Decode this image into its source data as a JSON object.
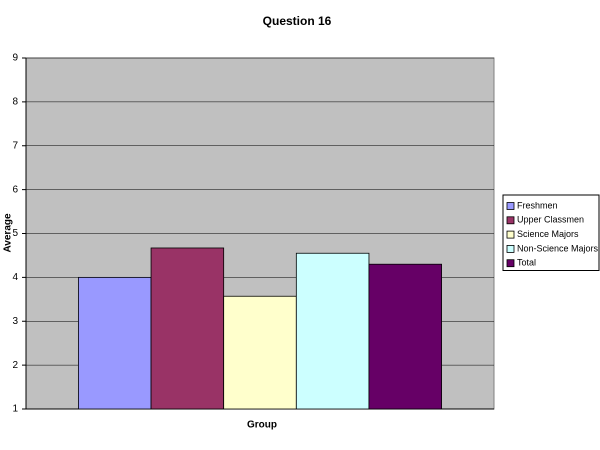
{
  "chart_data": {
    "type": "bar",
    "title": "Question 16",
    "x_label": "Group",
    "y_label": "Average",
    "series": [
      {
        "name": "Freshmen",
        "color": "#9999ff",
        "values": [
          4.0
        ]
      },
      {
        "name": "Upper Classmen",
        "color": "#993366",
        "values": [
          4.67
        ]
      },
      {
        "name": "Science Majors",
        "color": "#ffffcc",
        "values": [
          3.57
        ]
      },
      {
        "name": "Non-Science Majors",
        "color": "#ccffff",
        "values": [
          4.55
        ]
      },
      {
        "name": "Total",
        "color": "#660066",
        "values": [
          4.3
        ]
      }
    ],
    "ylim": [
      1,
      9
    ],
    "yticks": [
      1,
      2,
      3,
      4,
      5,
      6,
      7,
      8,
      9
    ],
    "grid": true,
    "legend": "right"
  }
}
